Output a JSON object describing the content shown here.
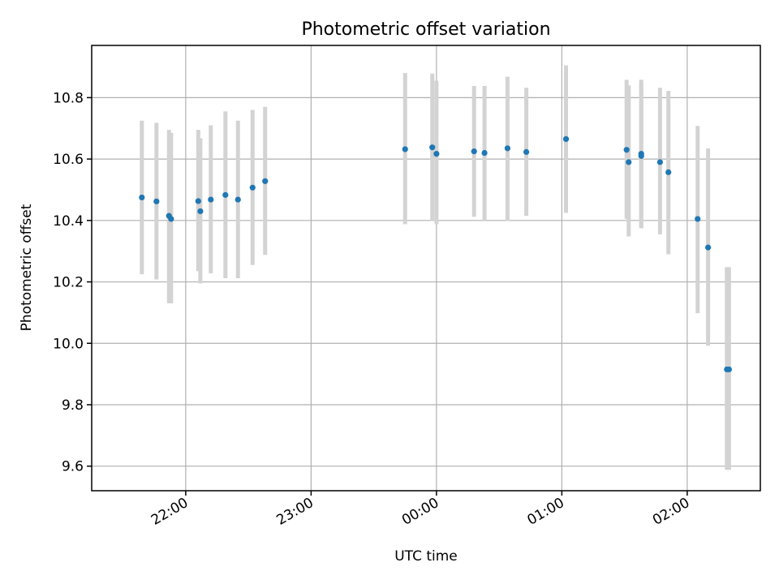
{
  "chart_data": {
    "type": "scatter",
    "title": "Photometric offset variation",
    "xlabel": "UTC time",
    "ylabel": "Photometric offset",
    "xlim": [
      "21:15",
      "26:35"
    ],
    "ylim": [
      9.52,
      10.97
    ],
    "x_tick_labels": [
      "22:00",
      "23:00",
      "00:00",
      "01:00",
      "02:00"
    ],
    "x_tick_values": [
      "22:00",
      "23:00",
      "00:00",
      "01:00",
      "02:00"
    ],
    "y_ticks": [
      9.6,
      9.8,
      10.0,
      10.2,
      10.4,
      10.6,
      10.8
    ],
    "y_tick_labels": [
      "9.6",
      "9.8",
      "10.0",
      "10.2",
      "10.4",
      "10.6",
      "10.8"
    ],
    "grid": true,
    "colors": {
      "points": "#1f77b4",
      "errorbars": "#d3d3d3"
    },
    "series": [
      {
        "points": [
          {
            "x": "21:39",
            "y": 10.475,
            "ylo": 10.225,
            "yhi": 10.725
          },
          {
            "x": "21:46",
            "y": 10.462,
            "ylo": 10.208,
            "yhi": 10.718
          },
          {
            "x": "21:52",
            "y": 10.415,
            "ylo": 10.13,
            "yhi": 10.695
          },
          {
            "x": "21:53",
            "y": 10.405,
            "ylo": 10.13,
            "yhi": 10.685
          },
          {
            "x": "22:06",
            "y": 10.463,
            "ylo": 10.235,
            "yhi": 10.695
          },
          {
            "x": "22:07",
            "y": 10.43,
            "ylo": 10.195,
            "yhi": 10.668
          },
          {
            "x": "22:12",
            "y": 10.468,
            "ylo": 10.228,
            "yhi": 10.71
          },
          {
            "x": "22:19",
            "y": 10.483,
            "ylo": 10.212,
            "yhi": 10.755
          },
          {
            "x": "22:25",
            "y": 10.468,
            "ylo": 10.212,
            "yhi": 10.725
          },
          {
            "x": "22:32",
            "y": 10.507,
            "ylo": 10.255,
            "yhi": 10.76
          },
          {
            "x": "22:38",
            "y": 10.528,
            "ylo": 10.288,
            "yhi": 10.77
          },
          {
            "x": "23:45",
            "y": 10.632,
            "ylo": 10.388,
            "yhi": 10.88
          },
          {
            "x": "23:58",
            "y": 10.638,
            "ylo": 10.398,
            "yhi": 10.878
          },
          {
            "x": "24:00",
            "y": 10.617,
            "ylo": 10.388,
            "yhi": 10.855
          },
          {
            "x": "24:18",
            "y": 10.625,
            "ylo": 10.412,
            "yhi": 10.838
          },
          {
            "x": "24:23",
            "y": 10.62,
            "ylo": 10.4,
            "yhi": 10.838
          },
          {
            "x": "24:34",
            "y": 10.635,
            "ylo": 10.398,
            "yhi": 10.868
          },
          {
            "x": "24:43",
            "y": 10.623,
            "ylo": 10.415,
            "yhi": 10.832
          },
          {
            "x": "25:02",
            "y": 10.665,
            "ylo": 10.425,
            "yhi": 10.905
          },
          {
            "x": "25:31",
            "y": 10.63,
            "ylo": 10.405,
            "yhi": 10.858
          },
          {
            "x": "25:32",
            "y": 10.59,
            "ylo": 10.348,
            "yhi": 10.84
          },
          {
            "x": "25:38",
            "y": 10.617,
            "ylo": 10.375,
            "yhi": 10.858
          },
          {
            "x": "25:38",
            "y": 10.61,
            "ylo": 10.375,
            "yhi": 10.848
          },
          {
            "x": "25:47",
            "y": 10.59,
            "ylo": 10.355,
            "yhi": 10.832
          },
          {
            "x": "25:51",
            "y": 10.557,
            "ylo": 10.29,
            "yhi": 10.822
          },
          {
            "x": "26:05",
            "y": 10.405,
            "ylo": 10.098,
            "yhi": 10.708
          },
          {
            "x": "26:10",
            "y": 10.312,
            "ylo": 9.992,
            "yhi": 10.635
          },
          {
            "x": "26:19",
            "y": 9.915,
            "ylo": 9.588,
            "yhi": 10.248
          },
          {
            "x": "26:20",
            "y": 9.915,
            "ylo": 9.588,
            "yhi": 10.248
          }
        ]
      }
    ]
  }
}
